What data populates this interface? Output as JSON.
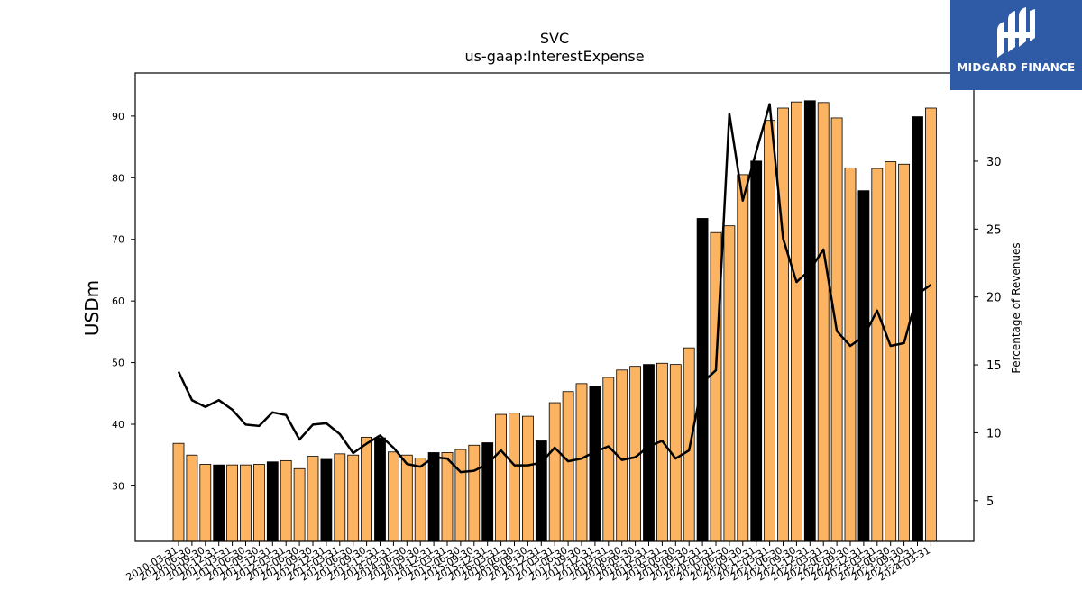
{
  "chart_data": {
    "type": "bar",
    "title": "SVC",
    "subtitle": "us-gaap:InterestExpense",
    "ylabel": "USDm",
    "y2label": "Percentage of Revenues",
    "ylim": [
      21,
      97
    ],
    "y2lim": [
      2,
      36.5
    ],
    "yticks": [
      30,
      40,
      50,
      60,
      70,
      80,
      90
    ],
    "y2ticks": [
      5,
      10,
      15,
      20,
      25,
      30
    ],
    "grid": false,
    "colors": {
      "bar_default": "#fdb462",
      "bar_q4": "#000000",
      "line": "#000000"
    },
    "categories": [
      "2010-03-31",
      "2010-06-30",
      "2010-09-30",
      "2010-12-31",
      "2011-03-31",
      "2011-06-30",
      "2011-09-30",
      "2011-12-31",
      "2012-03-31",
      "2012-06-30",
      "2012-09-30",
      "2012-12-31",
      "2013-03-31",
      "2013-06-30",
      "2013-09-30",
      "2013-12-31",
      "2014-03-31",
      "2014-06-30",
      "2014-09-30",
      "2014-12-31",
      "2015-03-31",
      "2015-06-30",
      "2015-09-30",
      "2015-12-31",
      "2016-03-31",
      "2016-06-30",
      "2016-09-30",
      "2016-12-31",
      "2017-03-31",
      "2017-06-30",
      "2017-09-30",
      "2017-12-31",
      "2018-03-31",
      "2018-06-30",
      "2018-09-30",
      "2018-12-31",
      "2019-03-31",
      "2019-06-30",
      "2019-09-30",
      "2019-12-31",
      "2020-03-31",
      "2020-06-30",
      "2020-09-30",
      "2020-12-31",
      "2021-03-31",
      "2021-06-30",
      "2021-09-30",
      "2021-12-31",
      "2022-03-31",
      "2022-06-30",
      "2022-09-30",
      "2022-12-31",
      "2023-03-31",
      "2023-06-30",
      "2023-09-30",
      "2023-12-31",
      "2024-03-31"
    ],
    "series": [
      {
        "axis": "left",
        "type": "bar",
        "values": [
          36.9,
          35.0,
          33.5,
          33.4,
          33.4,
          33.4,
          33.5,
          33.9,
          34.1,
          32.8,
          34.8,
          34.3,
          35.2,
          35.0,
          37.9,
          37.8,
          35.5,
          35.0,
          34.5,
          35.4,
          35.4,
          35.9,
          36.6,
          37.0,
          41.6,
          41.8,
          41.3,
          37.3,
          43.5,
          45.3,
          46.6,
          46.2,
          47.6,
          48.8,
          49.4,
          49.7,
          49.9,
          49.7,
          52.4,
          73.4,
          71.1,
          72.2,
          80.5,
          82.7,
          89.3,
          91.3,
          92.3,
          92.5,
          92.2,
          89.7,
          81.6,
          77.9,
          81.5,
          82.6,
          82.2,
          89.9,
          91.3
        ]
      },
      {
        "axis": "right",
        "type": "line",
        "values": [
          14.5,
          12.4,
          11.9,
          12.4,
          11.7,
          10.6,
          10.5,
          11.5,
          11.3,
          9.5,
          10.6,
          10.7,
          9.9,
          8.5,
          9.2,
          9.8,
          8.9,
          7.7,
          7.5,
          8.2,
          8.1,
          7.1,
          7.2,
          7.7,
          8.7,
          7.6,
          7.6,
          7.8,
          8.9,
          7.9,
          8.1,
          8.6,
          9.0,
          8.0,
          8.2,
          9.0,
          9.4,
          8.1,
          8.7,
          13.7,
          14.6,
          33.5,
          27.1,
          30.7,
          34.2,
          24.3,
          21.1,
          22.0,
          23.5,
          17.5,
          16.4,
          17.1,
          19.0,
          16.4,
          16.6,
          20.2,
          20.9
        ]
      }
    ]
  },
  "logo": {
    "text": "MIDGARD FINANCE"
  }
}
